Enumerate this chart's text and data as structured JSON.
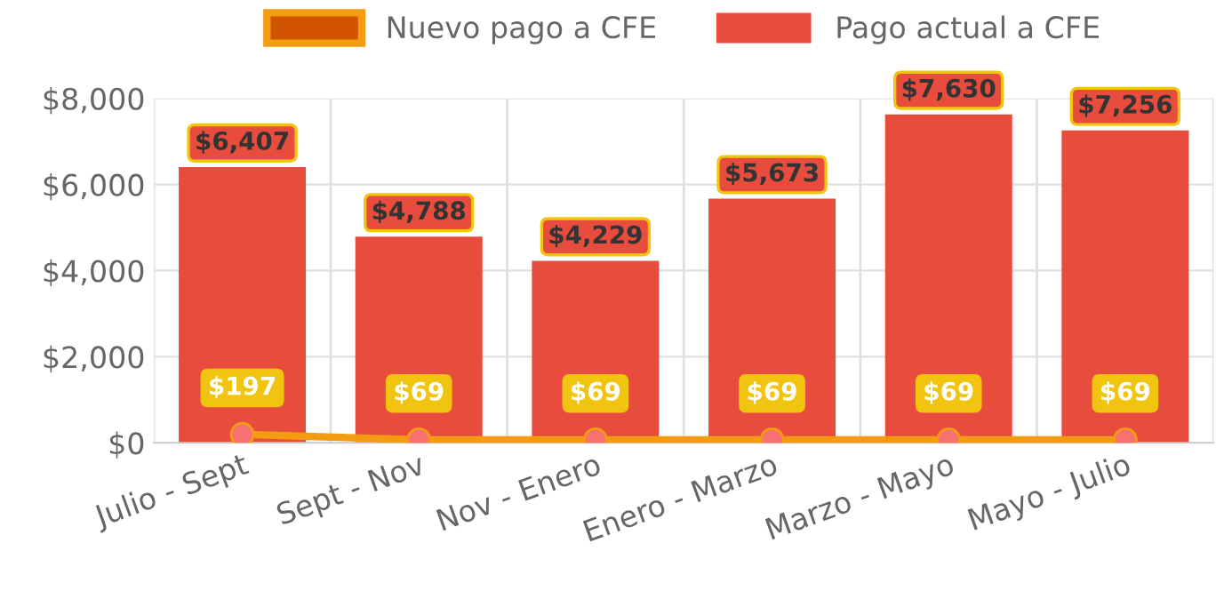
{
  "chart_data": {
    "type": "bar",
    "categories": [
      "Julio - Sept",
      "Sept - Nov",
      "Nov - Enero",
      "Enero - Marzo",
      "Marzo - Mayo",
      "Mayo - Julio"
    ],
    "series": [
      {
        "name": "Nuevo pago a CFE",
        "type": "line",
        "color": "#f39c12",
        "values": [
          197,
          69,
          69,
          69,
          69,
          69
        ],
        "value_labels": [
          "$197",
          "$69",
          "$69",
          "$69",
          "$69",
          "$69"
        ]
      },
      {
        "name": "Pago actual a CFE",
        "color": "#e74c3c",
        "values": [
          6407,
          4788,
          4229,
          5673,
          7630,
          7256
        ],
        "value_labels": [
          "$6,407",
          "$4,788",
          "$4,229",
          "$5,673",
          "$7,630",
          "$7,256"
        ]
      }
    ],
    "ylim": [
      0,
      8000
    ],
    "yticks": [
      {
        "value": 0,
        "label": "$0"
      },
      {
        "value": 2000,
        "label": "$2,000"
      },
      {
        "value": 4000,
        "label": "$4,000"
      },
      {
        "value": 6000,
        "label": "$6,000"
      },
      {
        "value": 8000,
        "label": "$8,000"
      }
    ],
    "grid": true,
    "legend": "top",
    "marker": "circle"
  }
}
